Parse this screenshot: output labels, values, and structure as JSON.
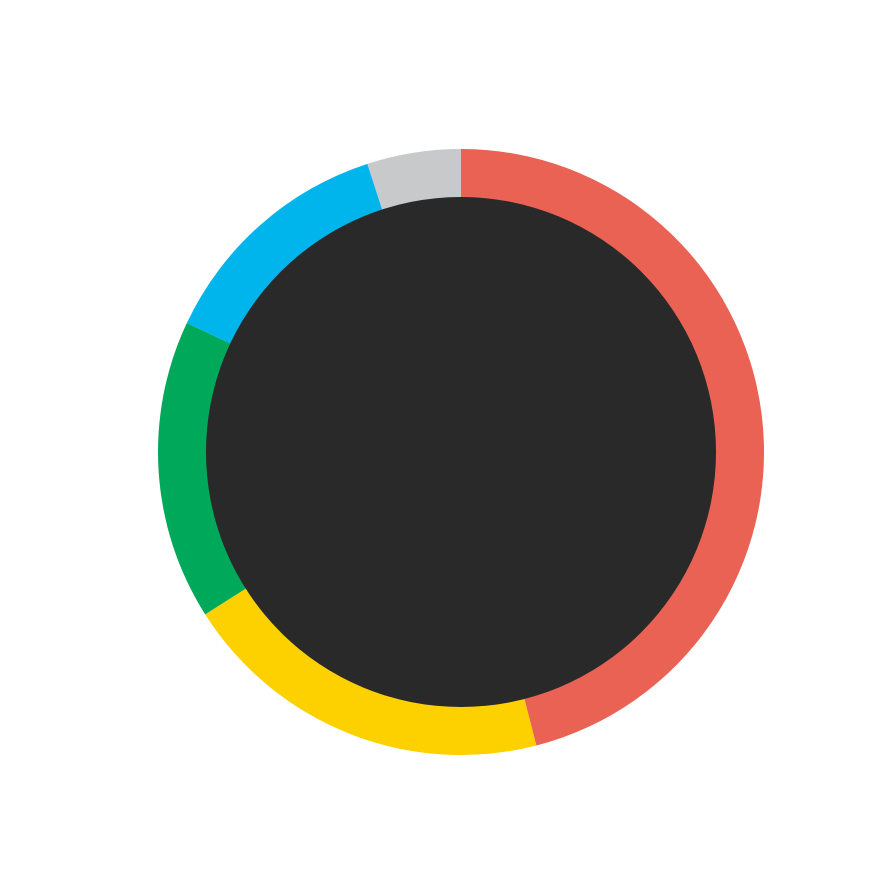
{
  "chart_data": {
    "type": "donut",
    "values": [
      46,
      20,
      16,
      13,
      5
    ],
    "colors": [
      "#e96254",
      "#fdd000",
      "#00a859",
      "#00b5ec",
      "#c8c9cb"
    ],
    "hole_color": "#292929"
  }
}
